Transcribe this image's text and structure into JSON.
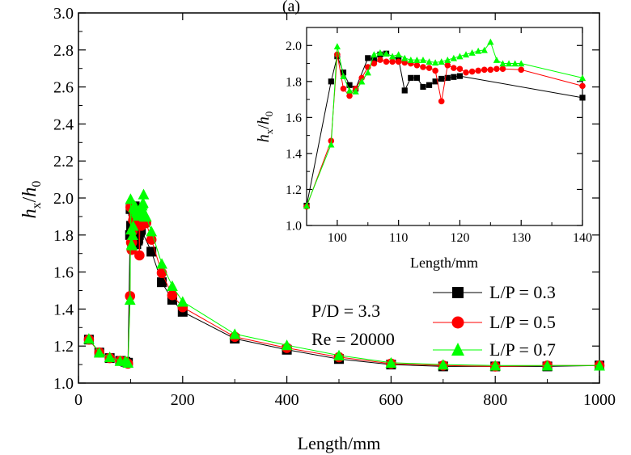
{
  "chart_data": [
    {
      "id": "main",
      "type": "line",
      "title": "",
      "header_fragment": "(a)",
      "xlabel": "Length/mm",
      "ylabel": "h_x/h_0",
      "xlim": [
        0,
        1000
      ],
      "ylim": [
        1.0,
        3.0
      ],
      "xticks": [
        0,
        200,
        400,
        600,
        800,
        1000
      ],
      "yticks": [
        1.0,
        1.2,
        1.4,
        1.6,
        1.8,
        2.0,
        2.2,
        2.4,
        2.6,
        2.8,
        3.0
      ],
      "grid": false,
      "legend_position": "bottom-right",
      "annotations": [
        "P/D = 3.3",
        "Re = 20000"
      ],
      "series": [
        {
          "name": "L/P = 0.3",
          "color": "#000000",
          "marker": "square",
          "points": [
            [
              20,
              1.235
            ],
            [
              40,
              1.165
            ],
            [
              60,
              1.135
            ],
            [
              80,
              1.12
            ],
            [
              90,
              1.115
            ],
            [
              95,
              1.11
            ],
            [
              99,
              1.8
            ],
            [
              100,
              1.94
            ],
            [
              101,
              1.85
            ],
            [
              102,
              1.78
            ],
            [
              103,
              1.76
            ],
            [
              105,
              1.93
            ],
            [
              106,
              1.92
            ],
            [
              107,
              1.95
            ],
            [
              108,
              1.955
            ],
            [
              110,
              1.925
            ],
            [
              111,
              1.75
            ],
            [
              112,
              1.82
            ],
            [
              113,
              1.82
            ],
            [
              114,
              1.77
            ],
            [
              115,
              1.78
            ],
            [
              116,
              1.8
            ],
            [
              117,
              1.815
            ],
            [
              118,
              1.82
            ],
            [
              119,
              1.825
            ],
            [
              120,
              1.83
            ],
            [
              140,
              1.71
            ],
            [
              160,
              1.545
            ],
            [
              180,
              1.45
            ],
            [
              200,
              1.385
            ],
            [
              300,
              1.24
            ],
            [
              400,
              1.18
            ],
            [
              500,
              1.13
            ],
            [
              600,
              1.1
            ],
            [
              700,
              1.09
            ],
            [
              800,
              1.09
            ],
            [
              900,
              1.09
            ],
            [
              1000,
              1.095
            ]
          ]
        },
        {
          "name": "L/P = 0.5",
          "color": "#ff0000",
          "marker": "circle",
          "points": [
            [
              20,
              1.235
            ],
            [
              40,
              1.165
            ],
            [
              60,
              1.135
            ],
            [
              80,
              1.12
            ],
            [
              90,
              1.115
            ],
            [
              95,
              1.105
            ],
            [
              99,
              1.47
            ],
            [
              100,
              1.95
            ],
            [
              101,
              1.76
            ],
            [
              102,
              1.72
            ],
            [
              103,
              1.76
            ],
            [
              104,
              1.82
            ],
            [
              105,
              1.88
            ],
            [
              106,
              1.9
            ],
            [
              107,
              1.92
            ],
            [
              108,
              1.91
            ],
            [
              109,
              1.91
            ],
            [
              110,
              1.91
            ],
            [
              111,
              1.905
            ],
            [
              112,
              1.9
            ],
            [
              113,
              1.89
            ],
            [
              114,
              1.88
            ],
            [
              115,
              1.875
            ],
            [
              116,
              1.86
            ],
            [
              117,
              1.69
            ],
            [
              118,
              1.89
            ],
            [
              119,
              1.875
            ],
            [
              120,
              1.87
            ],
            [
              121,
              1.85
            ],
            [
              122,
              1.855
            ],
            [
              123,
              1.86
            ],
            [
              124,
              1.865
            ],
            [
              125,
              1.865
            ],
            [
              126,
              1.87
            ],
            [
              127,
              1.87
            ],
            [
              130,
              1.865
            ],
            [
              140,
              1.775
            ],
            [
              160,
              1.595
            ],
            [
              180,
              1.475
            ],
            [
              200,
              1.41
            ],
            [
              300,
              1.25
            ],
            [
              400,
              1.19
            ],
            [
              500,
              1.14
            ],
            [
              600,
              1.105
            ],
            [
              700,
              1.095
            ],
            [
              800,
              1.09
            ],
            [
              900,
              1.095
            ],
            [
              1000,
              1.095
            ]
          ]
        },
        {
          "name": "L/P = 0.7",
          "color": "#00ff00",
          "marker": "triangle",
          "points": [
            [
              20,
              1.24
            ],
            [
              40,
              1.165
            ],
            [
              60,
              1.14
            ],
            [
              80,
              1.12
            ],
            [
              90,
              1.12
            ],
            [
              95,
              1.11
            ],
            [
              99,
              1.45
            ],
            [
              100,
              1.995
            ],
            [
              101,
              1.83
            ],
            [
              102,
              1.75
            ],
            [
              103,
              1.745
            ],
            [
              104,
              1.8
            ],
            [
              105,
              1.85
            ],
            [
              106,
              1.95
            ],
            [
              107,
              1.96
            ],
            [
              108,
              1.955
            ],
            [
              109,
              1.94
            ],
            [
              110,
              1.95
            ],
            [
              111,
              1.93
            ],
            [
              112,
              1.92
            ],
            [
              113,
              1.92
            ],
            [
              114,
              1.92
            ],
            [
              115,
              1.91
            ],
            [
              116,
              1.905
            ],
            [
              117,
              1.91
            ],
            [
              118,
              1.92
            ],
            [
              119,
              1.93
            ],
            [
              120,
              1.94
            ],
            [
              121,
              1.95
            ],
            [
              122,
              1.96
            ],
            [
              123,
              1.97
            ],
            [
              124,
              1.975
            ],
            [
              125,
              2.02
            ],
            [
              126,
              1.92
            ],
            [
              127,
              1.9
            ],
            [
              128,
              1.9
            ],
            [
              129,
              1.9
            ],
            [
              130,
              1.9
            ],
            [
              140,
              1.82
            ],
            [
              160,
              1.645
            ],
            [
              180,
              1.525
            ],
            [
              200,
              1.44
            ],
            [
              300,
              1.265
            ],
            [
              400,
              1.205
            ],
            [
              500,
              1.15
            ],
            [
              600,
              1.11
            ],
            [
              700,
              1.1
            ],
            [
              800,
              1.095
            ],
            [
              900,
              1.095
            ],
            [
              1000,
              1.095
            ]
          ]
        }
      ]
    },
    {
      "id": "inset",
      "type": "line",
      "title": "",
      "xlabel": "Length/mm",
      "ylabel": "h_x/h_0",
      "xlim": [
        95,
        140
      ],
      "ylim": [
        1.0,
        2.1
      ],
      "xticks": [
        100,
        110,
        120,
        130,
        140
      ],
      "yticks": [
        1.0,
        1.2,
        1.4,
        1.6,
        1.8,
        2.0
      ],
      "grid": false,
      "note": "inset shows the same three series as the main plot over 95-140 mm"
    }
  ],
  "text": {
    "main_xlabel": "Length/mm",
    "inset_xlabel": "Length/mm",
    "header_fragment": "(a)",
    "annotation_pd": "P/D = 3.3",
    "annotation_re": "Re = 20000",
    "legend_1": "L/P = 0.3",
    "legend_2": "L/P = 0.5",
    "legend_3": "L/P = 0.7"
  }
}
